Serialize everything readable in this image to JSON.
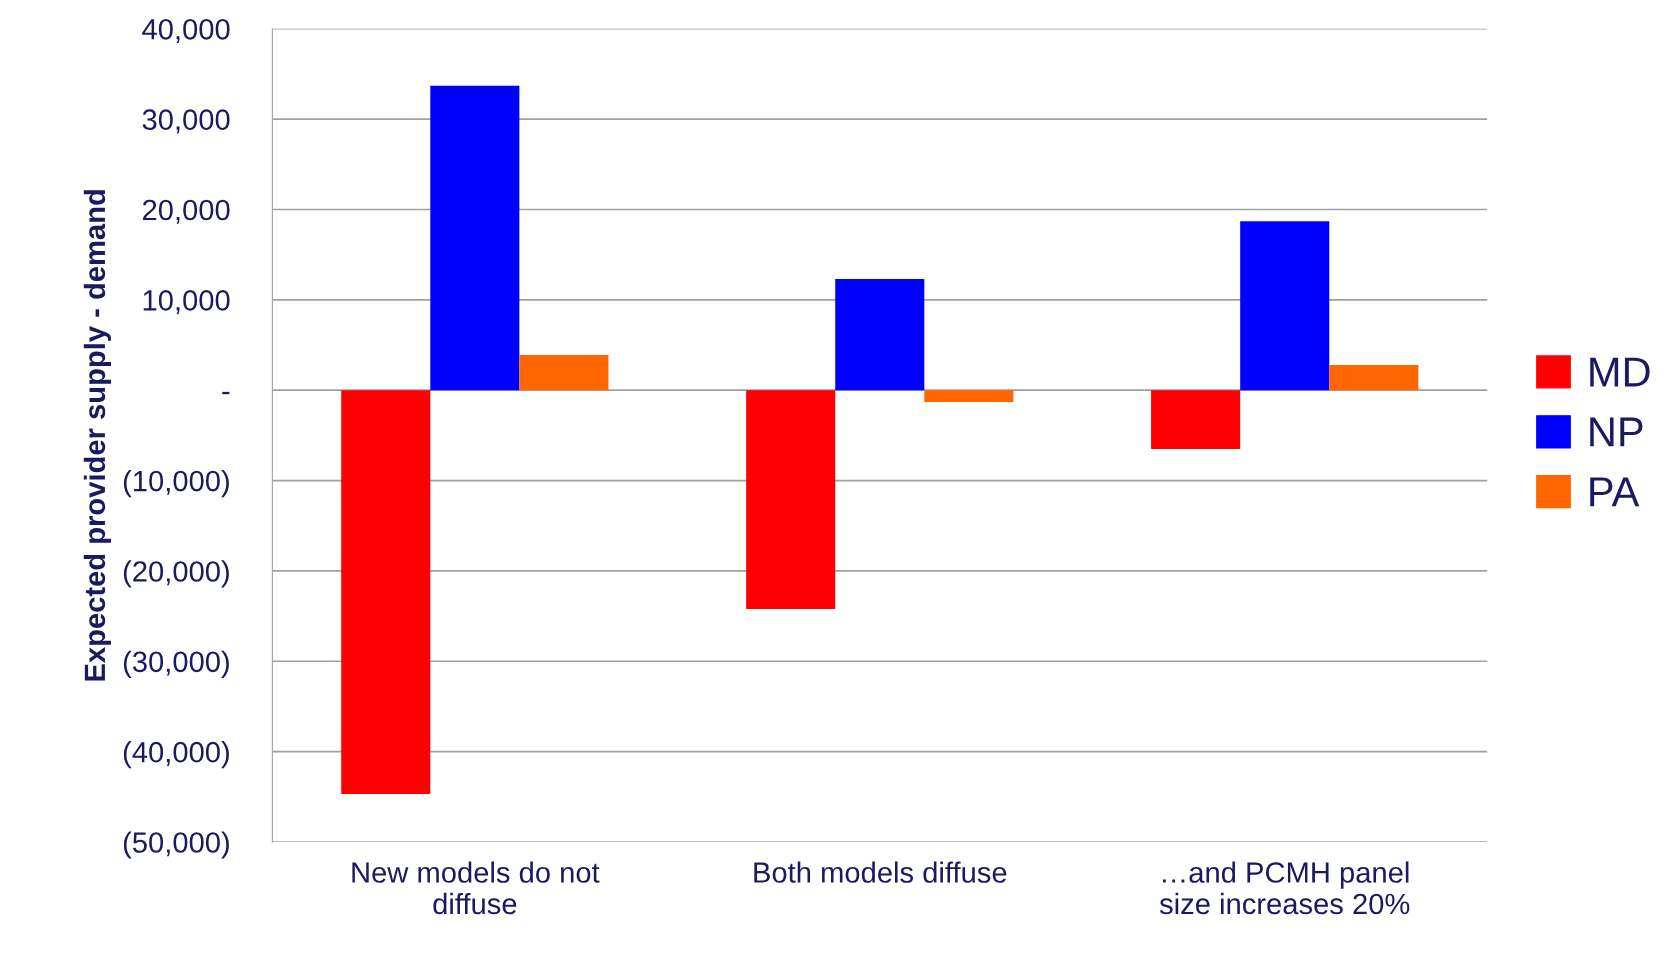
{
  "chart_data": {
    "type": "bar",
    "ylabel": "Expected provider supply - demand",
    "categories": [
      "New models do not\ndiffuse",
      "Both models diffuse",
      "…and PCMH panel\nsize increases 20%"
    ],
    "series": [
      {
        "name": "MD",
        "color": "#ff0000",
        "values": [
          -44700,
          -24200,
          -6500
        ]
      },
      {
        "name": "NP",
        "color": "#0000ff",
        "values": [
          33700,
          12300,
          18700
        ]
      },
      {
        "name": "PA",
        "color": "#ff6600",
        "values": [
          3900,
          -1300,
          2800
        ]
      }
    ],
    "ylim": [
      -50000,
      40000
    ],
    "yticks": [
      {
        "value": -50000,
        "label": "(50,000)"
      },
      {
        "value": -40000,
        "label": "(40,000)"
      },
      {
        "value": -30000,
        "label": "(30,000)"
      },
      {
        "value": -20000,
        "label": "(20,000)"
      },
      {
        "value": -10000,
        "label": "(10,000)"
      },
      {
        "value": 0,
        "label": "-"
      },
      {
        "value": 10000,
        "label": "10,000"
      },
      {
        "value": 20000,
        "label": "20,000"
      },
      {
        "value": 30000,
        "label": "30,000"
      },
      {
        "value": 40000,
        "label": "40,000"
      }
    ],
    "grid": "y",
    "legend": "right"
  }
}
